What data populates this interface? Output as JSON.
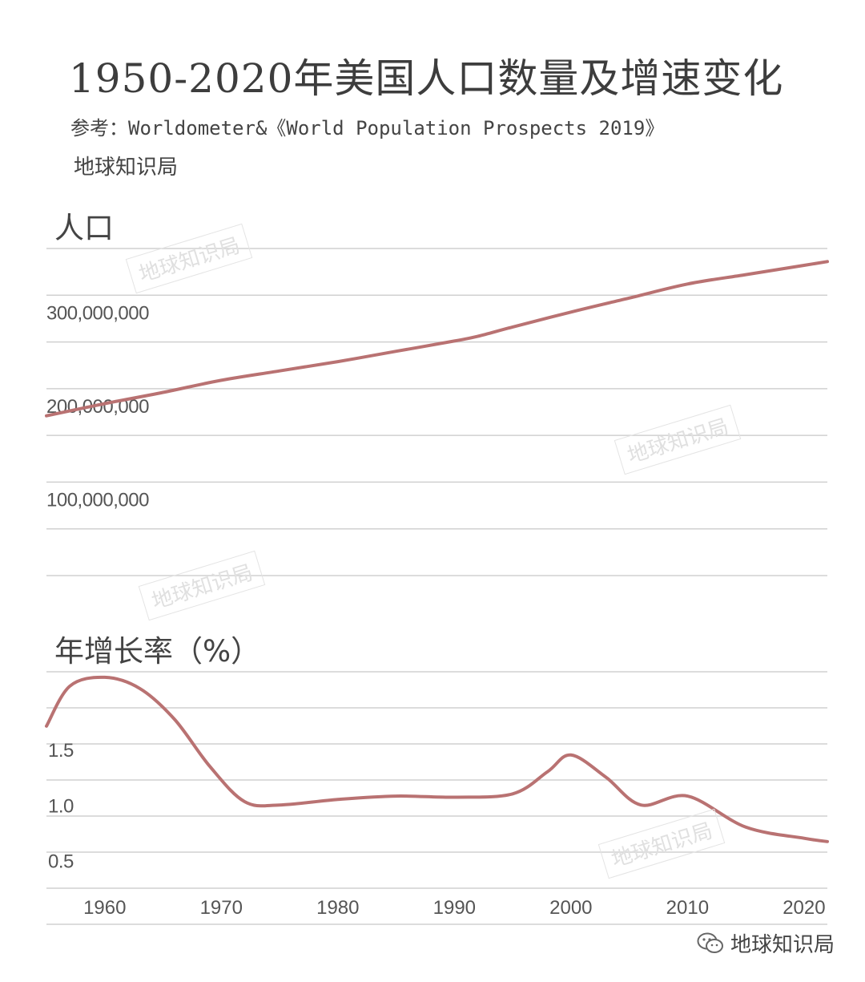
{
  "title": "1950-2020年美国人口数量及增速变化",
  "source": "参考：Worldometer&《World Population Prospects 2019》",
  "author": "地球知识局",
  "watermark": "地球知识局",
  "brand": {
    "icon": "wechat-icon",
    "label": "地球知识局"
  },
  "colors": {
    "line": "#b97272",
    "grid": "#d0d0d0",
    "text": "#555555"
  },
  "chart_data": [
    {
      "type": "line",
      "title": "人口",
      "x": [
        1955,
        1960,
        1965,
        1970,
        1975,
        1980,
        1985,
        1990,
        1992,
        1995,
        2000,
        2005,
        2010,
        2015,
        2020,
        2022
      ],
      "values": [
        171000000,
        184000000,
        196000000,
        209000000,
        219000000,
        229000000,
        240000000,
        251000000,
        256000000,
        266000000,
        282000000,
        297000000,
        312000000,
        322000000,
        332000000,
        336000000
      ],
      "yticks": [
        "100,000,000",
        "200,000,000",
        "300,000,000"
      ],
      "ytick_values": [
        100000000,
        200000000,
        300000000
      ],
      "ylim": [
        0,
        350000000
      ],
      "grid": true
    },
    {
      "type": "line",
      "title": "年增长率（%）",
      "x": [
        1955,
        1957,
        1960,
        1963,
        1966,
        1969,
        1972,
        1975,
        1980,
        1985,
        1990,
        1995,
        1998,
        2000,
        2003,
        2006,
        2010,
        2015,
        2020,
        2022
      ],
      "values": [
        1.56,
        1.92,
        2.0,
        1.9,
        1.62,
        1.2,
        0.88,
        0.85,
        0.9,
        0.93,
        0.92,
        0.95,
        1.15,
        1.3,
        1.1,
        0.85,
        0.93,
        0.65,
        0.55,
        0.52
      ],
      "yticks": [
        "0.5",
        "1.0",
        "1.5"
      ],
      "ytick_values": [
        0.5,
        1.0,
        1.5
      ],
      "ylim": [
        0.1,
        2.05
      ],
      "xticks": [
        "1960",
        "1970",
        "1980",
        "1990",
        "2000",
        "2010",
        "2020"
      ],
      "xlim": [
        1955,
        2022
      ],
      "grid": true
    }
  ]
}
